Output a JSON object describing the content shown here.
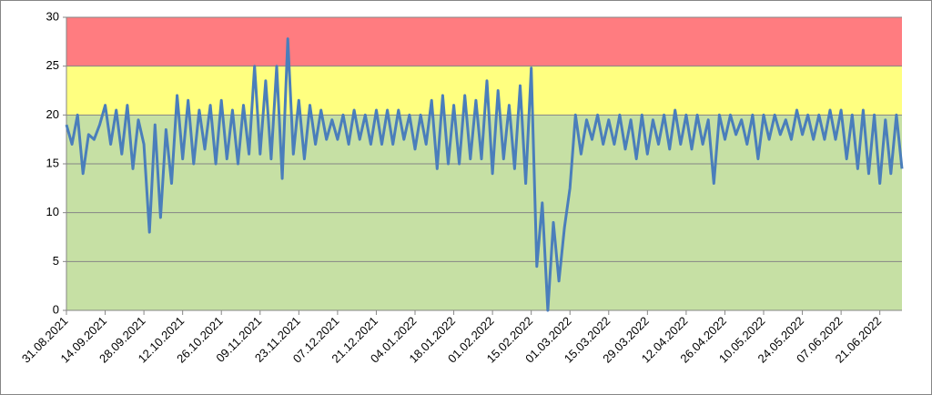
{
  "chart_data": {
    "type": "line",
    "categories": [
      "31.08.2021",
      null,
      null,
      null,
      null,
      null,
      null,
      "14.09.2021",
      null,
      null,
      null,
      null,
      null,
      null,
      "28.09.2021",
      null,
      null,
      null,
      null,
      null,
      null,
      "12.10.2021",
      null,
      null,
      null,
      null,
      null,
      null,
      "26.10.2021",
      null,
      null,
      null,
      null,
      null,
      null,
      "09.11.2021",
      null,
      null,
      null,
      null,
      null,
      null,
      "23.11.2021",
      null,
      null,
      null,
      null,
      null,
      null,
      "07.12.2021",
      null,
      null,
      null,
      null,
      null,
      null,
      "21.12.2021",
      null,
      null,
      null,
      null,
      null,
      null,
      "04.01.2022",
      null,
      null,
      null,
      null,
      null,
      null,
      "18.01.2022",
      null,
      null,
      null,
      null,
      null,
      null,
      "01.02.2022",
      null,
      null,
      null,
      null,
      null,
      null,
      "15.02.2022",
      null,
      null,
      null,
      null,
      null,
      null,
      "01.03.2022",
      null,
      null,
      null,
      null,
      null,
      null,
      "15.03.2022",
      null,
      null,
      null,
      null,
      null,
      null,
      "29.03.2022",
      null,
      null,
      null,
      null,
      null,
      null,
      "12.04.2022",
      null,
      null,
      null,
      null,
      null,
      null,
      "26.04.2022",
      null,
      null,
      null,
      null,
      null,
      null,
      "10.05.2022",
      null,
      null,
      null,
      null,
      null,
      null,
      "24.05.2022",
      null,
      null,
      null,
      null,
      null,
      null,
      "07.06.2022",
      null,
      null,
      null,
      null,
      null,
      null,
      "21.06.2022",
      null,
      null,
      null,
      null
    ],
    "values": [
      19,
      17,
      20,
      14,
      18,
      17.5,
      19,
      21,
      17,
      20.5,
      16,
      21,
      14.5,
      19.5,
      17,
      8,
      19,
      9.5,
      18.5,
      13,
      22,
      15.5,
      21.5,
      15,
      20.5,
      16.5,
      21,
      15,
      21.5,
      15.5,
      20.5,
      15,
      21,
      16,
      25,
      16,
      23.5,
      15.5,
      25,
      13.5,
      27.8,
      16,
      21.5,
      15.5,
      21,
      17,
      20.5,
      17.5,
      19.5,
      17.5,
      20,
      17,
      20.5,
      17.5,
      20,
      17,
      20.5,
      17,
      20.5,
      17,
      20.5,
      17.5,
      20,
      16.5,
      20,
      17,
      21.5,
      14.5,
      22,
      15,
      21,
      15,
      22,
      15.5,
      21.5,
      15.5,
      23.5,
      14,
      22.5,
      15.5,
      21,
      14.5,
      23,
      13,
      24.8,
      4.5,
      11,
      0,
      9,
      3,
      8.5,
      12.5,
      20,
      16,
      19.5,
      17.5,
      20,
      17,
      19.5,
      17,
      20,
      16.5,
      19.5,
      15.5,
      20,
      16,
      19.5,
      17,
      20,
      16.5,
      20.5,
      17,
      20,
      16.5,
      20,
      17,
      19.5,
      13,
      20,
      17.5,
      20,
      18,
      19.5,
      17,
      20,
      15.5,
      20,
      17.5,
      20,
      18,
      19.5,
      17.5,
      20.5,
      18,
      20,
      17.5,
      20,
      17.5,
      20.5,
      17.5,
      20.5,
      15.5,
      20,
      14.5,
      20.5,
      14,
      20,
      13,
      19.5,
      14,
      20,
      14.5
    ],
    "color": "#4a7ebb",
    "ylim": [
      0,
      30
    ],
    "yticks": [
      0,
      5,
      10,
      15,
      20,
      25,
      30
    ],
    "grid": true,
    "bands": [
      {
        "from": 25,
        "to": 30,
        "color": "#ff7c80"
      },
      {
        "from": 20,
        "to": 25,
        "color": "#ffff80"
      },
      {
        "from": 0,
        "to": 20,
        "color": "#c6e0a4"
      }
    ]
  }
}
